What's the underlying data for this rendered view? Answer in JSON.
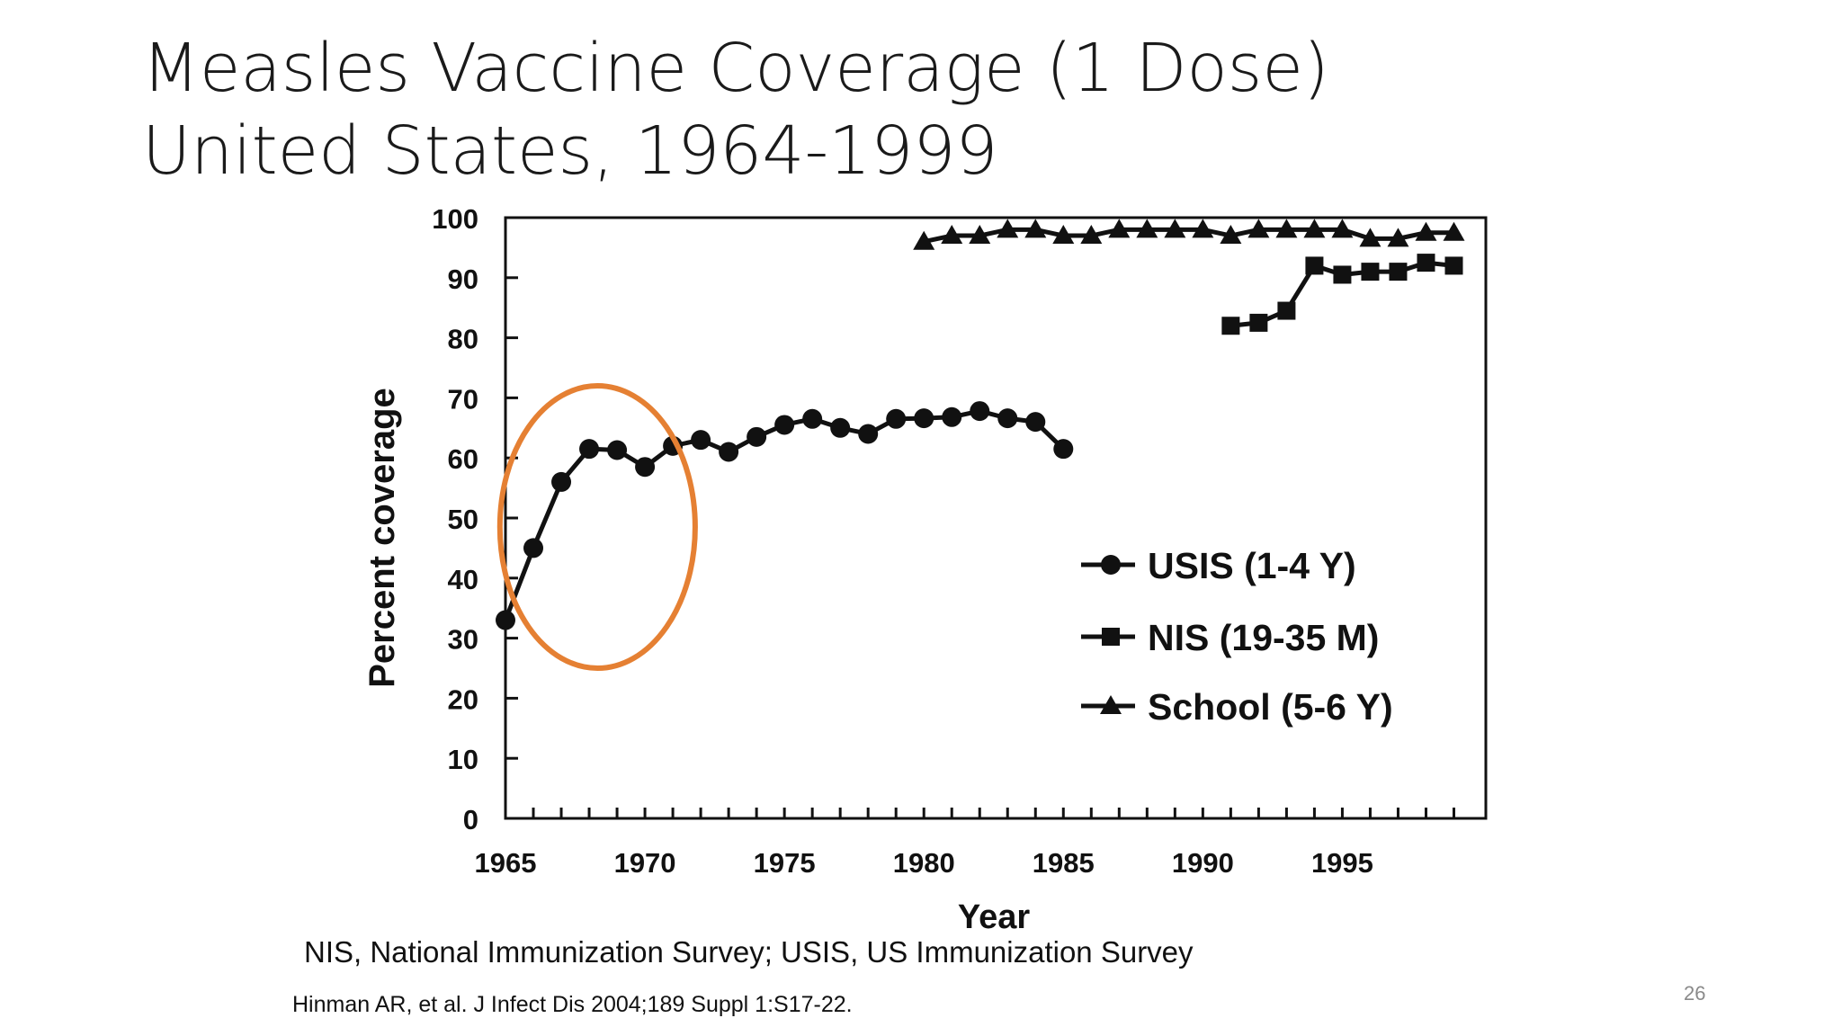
{
  "slide": {
    "title_line1": "Measles Vaccine Coverage (1 Dose)",
    "title_line2": "United States, 1964-1999",
    "footnote": "NIS, National Immunization Survey; USIS, US Immunization Survey",
    "citation": "Hinman AR, et al. J Infect Dis 2004;189 Suppl 1:S17-22.",
    "page_number": "26",
    "highlight_color": "#e58033"
  },
  "chart_data": {
    "type": "line",
    "title": "",
    "xlabel": "Year",
    "ylabel": "Percent coverage",
    "xlim": [
      1965,
      1999
    ],
    "ylim": [
      0,
      100
    ],
    "x_ticks": [
      1965,
      1970,
      1975,
      1980,
      1985,
      1990,
      1995
    ],
    "y_ticks": [
      0,
      10,
      20,
      30,
      40,
      50,
      60,
      70,
      80,
      90,
      100
    ],
    "grid": false,
    "legend_position": "lower-right",
    "highlight": {
      "shape": "circle",
      "x_range": [
        1964.8,
        1971.8
      ],
      "y_range": [
        25,
        72
      ]
    },
    "series": [
      {
        "name": "USIS (1-4 Y)",
        "marker": "circle",
        "x": [
          1965,
          1966,
          1967,
          1968,
          1969,
          1970,
          1971,
          1972,
          1973,
          1974,
          1975,
          1976,
          1977,
          1978,
          1979,
          1980,
          1981,
          1982,
          1983,
          1984,
          1985
        ],
        "y": [
          33,
          45,
          56,
          61.5,
          61.3,
          58.5,
          62,
          63,
          61,
          63.5,
          65.5,
          66.5,
          65,
          64,
          66.5,
          66.6,
          66.8,
          67.8,
          66.6,
          66,
          61.5
        ]
      },
      {
        "name": "NIS (19-35 M)",
        "marker": "square",
        "x": [
          1991,
          1992,
          1993,
          1994,
          1995,
          1996,
          1997,
          1998,
          1999
        ],
        "y": [
          82,
          82.5,
          84.5,
          92,
          90.5,
          91,
          91,
          92.5,
          92
        ]
      },
      {
        "name": "School (5-6 Y)",
        "marker": "triangle",
        "x": [
          1980,
          1981,
          1982,
          1983,
          1984,
          1985,
          1986,
          1987,
          1988,
          1989,
          1990,
          1991,
          1992,
          1993,
          1994,
          1995,
          1996,
          1997,
          1998,
          1999
        ],
        "y": [
          96,
          97,
          97,
          98,
          98,
          97,
          97,
          98,
          98,
          98,
          98,
          97,
          98,
          98,
          98,
          98,
          96.5,
          96.5,
          97.5,
          97.5
        ]
      }
    ]
  }
}
